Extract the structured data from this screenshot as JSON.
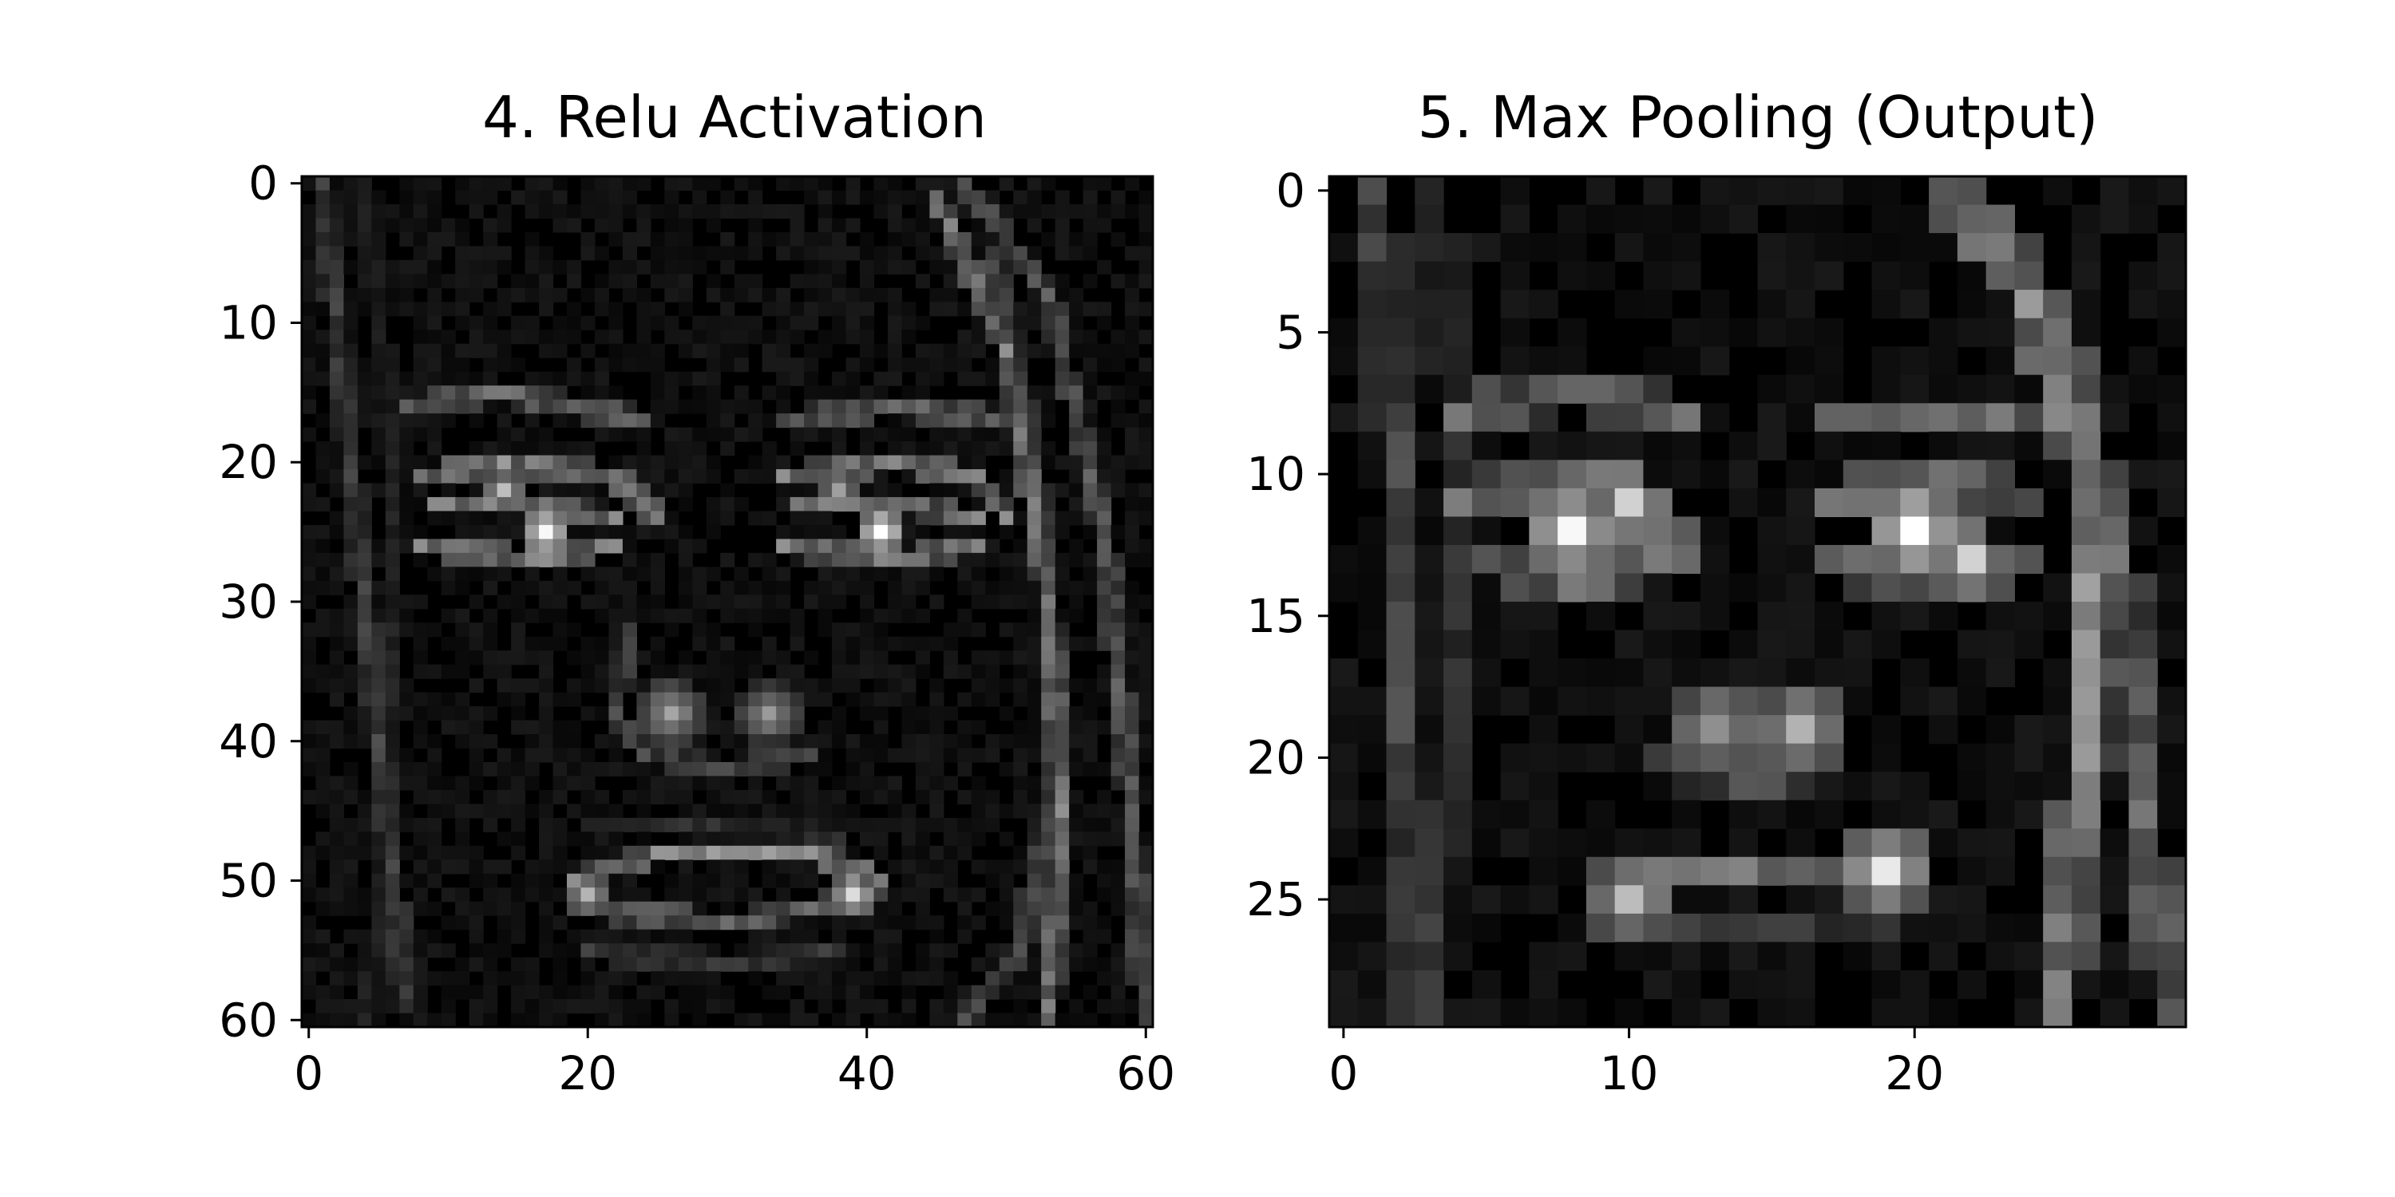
{
  "figure": {
    "background": "#ffffff",
    "colormap": "gray"
  },
  "chart_data": [
    {
      "type": "heatmap",
      "title": "4. Relu Activation",
      "xlabel": "",
      "ylabel": "",
      "grid": false,
      "colormap": "gray",
      "rows": 61,
      "cols": 61,
      "xlim": [
        -0.5,
        60.5
      ],
      "ylim": [
        60.5,
        -0.5
      ],
      "xticks": [
        0,
        20,
        40,
        60
      ],
      "yticks": [
        0,
        10,
        20,
        30,
        40,
        50,
        60
      ],
      "features": [
        {
          "name": "left-hair-strand",
          "kind": "line",
          "points": [
            [
              1,
              0
            ],
            [
              3,
              20
            ],
            [
              5,
              40
            ],
            [
              7,
              59
            ]
          ],
          "v": 0.28
        },
        {
          "name": "left-hair-strand-2",
          "kind": "line",
          "points": [
            [
              4,
              0
            ],
            [
              6,
              20
            ],
            [
              6,
              45
            ],
            [
              4,
              60
            ]
          ],
          "v": 0.15
        },
        {
          "name": "right-hair-outer",
          "kind": "line",
          "points": [
            [
              47,
              0
            ],
            [
              53,
              8
            ],
            [
              57,
              25
            ],
            [
              59,
              45
            ],
            [
              60,
              60
            ]
          ],
          "v": 0.38
        },
        {
          "name": "right-hair-inner",
          "kind": "line",
          "points": [
            [
              45,
              1
            ],
            [
              50,
              12
            ],
            [
              53,
              30
            ],
            [
              54,
              45
            ],
            [
              53,
              60
            ]
          ],
          "v": 0.5
        },
        {
          "name": "right-hair-inner-2",
          "kind": "line",
          "points": [
            [
              49,
              5
            ],
            [
              52,
              20
            ],
            [
              54,
              40
            ],
            [
              51,
              55
            ],
            [
              47,
              60
            ]
          ],
          "v": 0.3
        },
        {
          "name": "left-brow",
          "kind": "line",
          "points": [
            [
              7,
              16
            ],
            [
              14,
              15
            ],
            [
              24,
              17
            ]
          ],
          "v": 0.45
        },
        {
          "name": "right-brow",
          "kind": "line",
          "points": [
            [
              34,
              17
            ],
            [
              42,
              16
            ],
            [
              50,
              17
            ]
          ],
          "v": 0.45
        },
        {
          "name": "left-eye-top",
          "kind": "line",
          "points": [
            [
              8,
              21
            ],
            [
              14,
              20
            ],
            [
              22,
              21
            ],
            [
              25,
              24
            ]
          ],
          "v": 0.55
        },
        {
          "name": "left-eye-bottom",
          "kind": "line",
          "points": [
            [
              8,
              26
            ],
            [
              16,
              27
            ],
            [
              22,
              26
            ]
          ],
          "v": 0.55
        },
        {
          "name": "left-eye-mid",
          "kind": "line",
          "points": [
            [
              9,
              23
            ],
            [
              16,
              23
            ],
            [
              22,
              24
            ]
          ],
          "v": 0.5
        },
        {
          "name": "right-eye-top",
          "kind": "line",
          "points": [
            [
              34,
              21
            ],
            [
              42,
              20
            ],
            [
              48,
              21
            ],
            [
              50,
              24
            ]
          ],
          "v": 0.55
        },
        {
          "name": "right-eye-bottom",
          "kind": "line",
          "points": [
            [
              34,
              26
            ],
            [
              42,
              27
            ],
            [
              48,
              26
            ]
          ],
          "v": 0.55
        },
        {
          "name": "right-eye-mid",
          "kind": "line",
          "points": [
            [
              35,
              23
            ],
            [
              42,
              23
            ],
            [
              48,
              24
            ]
          ],
          "v": 0.5
        },
        {
          "name": "left-pupil",
          "kind": "spot",
          "x": 17,
          "y": 25,
          "r": 1.4,
          "v": 0.95
        },
        {
          "name": "left-pupil-2",
          "kind": "spot",
          "x": 14,
          "y": 22,
          "r": 1.0,
          "v": 0.7
        },
        {
          "name": "right-pupil",
          "kind": "spot",
          "x": 41,
          "y": 25,
          "r": 1.2,
          "v": 1.0
        },
        {
          "name": "right-pupil-2",
          "kind": "spot",
          "x": 38,
          "y": 22,
          "r": 1.0,
          "v": 0.6
        },
        {
          "name": "nose-left",
          "kind": "spot",
          "x": 26,
          "y": 38,
          "r": 2.0,
          "v": 0.6
        },
        {
          "name": "nose-right",
          "kind": "spot",
          "x": 33,
          "y": 38,
          "r": 1.8,
          "v": 0.55
        },
        {
          "name": "nose-bridge",
          "kind": "line",
          "points": [
            [
              23,
              32
            ],
            [
              22,
              38
            ],
            [
              24,
              41
            ],
            [
              30,
              42
            ],
            [
              36,
              41
            ]
          ],
          "v": 0.3
        },
        {
          "name": "chin-line",
          "kind": "line",
          "points": [
            [
              20,
              46
            ],
            [
              30,
              46
            ],
            [
              38,
              47
            ]
          ],
          "v": 0.2
        },
        {
          "name": "upper-lip",
          "kind": "line",
          "points": [
            [
              19,
              50
            ],
            [
              25,
              48
            ],
            [
              30,
              48
            ],
            [
              36,
              48
            ],
            [
              41,
              50
            ]
          ],
          "v": 0.55
        },
        {
          "name": "lower-lip",
          "kind": "line",
          "points": [
            [
              19,
              52
            ],
            [
              30,
              53
            ],
            [
              41,
              51
            ]
          ],
          "v": 0.45
        },
        {
          "name": "lip-corner-left",
          "kind": "spot",
          "x": 20,
          "y": 51,
          "r": 1.0,
          "v": 0.7
        },
        {
          "name": "lip-corner-right",
          "kind": "spot",
          "x": 39,
          "y": 51,
          "r": 1.1,
          "v": 0.85
        },
        {
          "name": "below-lip",
          "kind": "line",
          "points": [
            [
              20,
              55
            ],
            [
              30,
              56
            ],
            [
              38,
              55
            ]
          ],
          "v": 0.25
        }
      ]
    },
    {
      "type": "heatmap",
      "title": "5. Max Pooling (Output)",
      "xlabel": "",
      "ylabel": "",
      "grid": false,
      "colormap": "gray",
      "rows": 30,
      "cols": 30,
      "xlim": [
        -0.5,
        29.5
      ],
      "ylim": [
        29.5,
        -0.5
      ],
      "xticks": [
        0,
        10,
        20
      ],
      "yticks": [
        0,
        5,
        10,
        15,
        20,
        25
      ],
      "features": [
        {
          "name": "left-hair-strand",
          "kind": "line",
          "points": [
            [
              1,
              0
            ],
            [
              2,
              10
            ],
            [
              2,
              20
            ],
            [
              3,
              29
            ]
          ],
          "v": 0.3
        },
        {
          "name": "left-hair-strand-2",
          "kind": "line",
          "points": [
            [
              3,
              0
            ],
            [
              4,
              8
            ],
            [
              4,
              20
            ],
            [
              2,
              29
            ]
          ],
          "v": 0.2
        },
        {
          "name": "right-hair-outer",
          "kind": "line",
          "points": [
            [
              22,
              0
            ],
            [
              25,
              5
            ],
            [
              27,
              12
            ],
            [
              28,
              22
            ],
            [
              29,
              29
            ]
          ],
          "v": 0.45
        },
        {
          "name": "right-hair-inner",
          "kind": "line",
          "points": [
            [
              21,
              0
            ],
            [
              24,
              4
            ],
            [
              26,
              10
            ],
            [
              26,
              20
            ],
            [
              25,
              29
            ]
          ],
          "v": 0.55
        },
        {
          "name": "left-brow",
          "kind": "line",
          "points": [
            [
              4,
              8
            ],
            [
              8,
              7
            ],
            [
              12,
              8
            ]
          ],
          "v": 0.45
        },
        {
          "name": "right-brow",
          "kind": "line",
          "points": [
            [
              17,
              8
            ],
            [
              21,
              8
            ],
            [
              24,
              8
            ]
          ],
          "v": 0.45
        },
        {
          "name": "left-eye-line",
          "kind": "line",
          "points": [
            [
              4,
              11
            ],
            [
              8,
              10
            ],
            [
              11,
              11
            ],
            [
              12,
              13
            ]
          ],
          "v": 0.5
        },
        {
          "name": "left-eye-bottom",
          "kind": "line",
          "points": [
            [
              5,
              13
            ],
            [
              8,
              14
            ],
            [
              11,
              13
            ]
          ],
          "v": 0.45
        },
        {
          "name": "right-eye-line",
          "kind": "line",
          "points": [
            [
              17,
              11
            ],
            [
              21,
              10
            ],
            [
              24,
              11
            ]
          ],
          "v": 0.5
        },
        {
          "name": "right-eye-bottom",
          "kind": "line",
          "points": [
            [
              17,
              13
            ],
            [
              21,
              14
            ],
            [
              24,
              13
            ]
          ],
          "v": 0.45
        },
        {
          "name": "left-pupil",
          "kind": "spot",
          "x": 8,
          "y": 12,
          "r": 1.2,
          "v": 0.9
        },
        {
          "name": "left-pupil-2",
          "kind": "spot",
          "x": 10,
          "y": 11,
          "r": 0.8,
          "v": 0.8
        },
        {
          "name": "right-pupil",
          "kind": "spot",
          "x": 20,
          "y": 12,
          "r": 1.1,
          "v": 1.0
        },
        {
          "name": "right-pupil-2",
          "kind": "spot",
          "x": 22,
          "y": 13,
          "r": 0.8,
          "v": 0.75
        },
        {
          "name": "nose-left",
          "kind": "spot",
          "x": 13,
          "y": 19,
          "r": 1.4,
          "v": 0.55
        },
        {
          "name": "nose-right",
          "kind": "spot",
          "x": 16,
          "y": 19,
          "r": 1.2,
          "v": 0.65
        },
        {
          "name": "nose-bridge",
          "kind": "line",
          "points": [
            [
              11,
              20
            ],
            [
              14,
              21
            ],
            [
              17,
              20
            ]
          ],
          "v": 0.35
        },
        {
          "name": "upper-lip",
          "kind": "line",
          "points": [
            [
              10,
              24
            ],
            [
              14,
              24
            ],
            [
              18,
              24
            ],
            [
              20,
              24
            ]
          ],
          "v": 0.45
        },
        {
          "name": "lip-left",
          "kind": "spot",
          "x": 10,
          "y": 25,
          "r": 1.0,
          "v": 0.7
        },
        {
          "name": "lip-right",
          "kind": "spot",
          "x": 19,
          "y": 24,
          "r": 1.0,
          "v": 0.85
        },
        {
          "name": "lower-lip",
          "kind": "line",
          "points": [
            [
              11,
              26
            ],
            [
              15,
              26
            ],
            [
              19,
              26
            ]
          ],
          "v": 0.25
        }
      ]
    }
  ]
}
